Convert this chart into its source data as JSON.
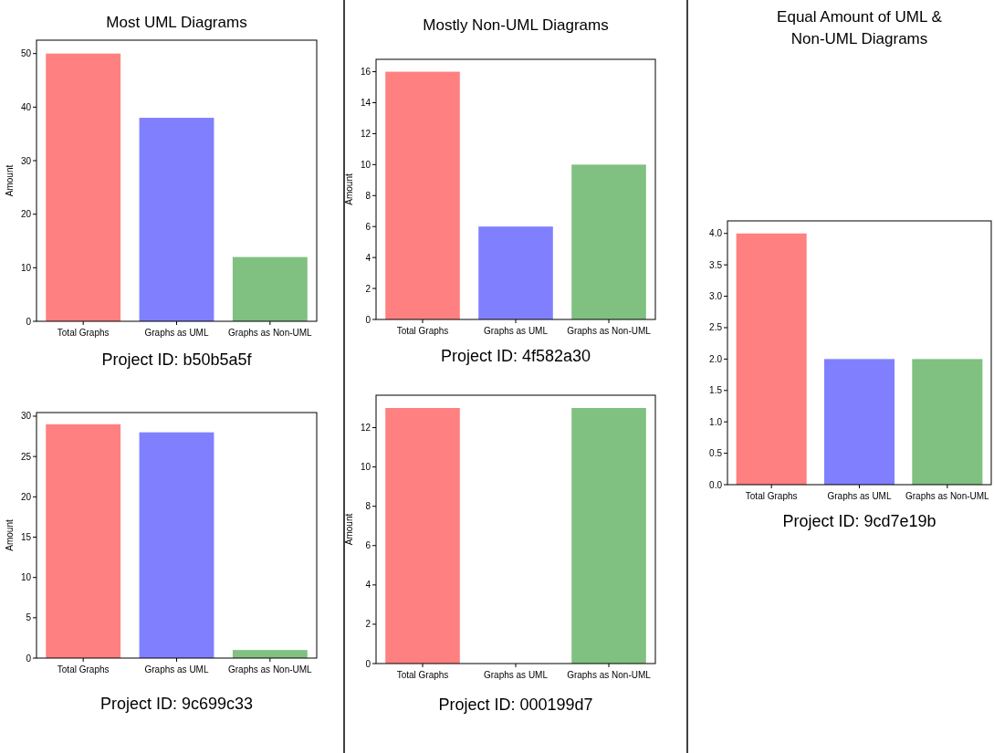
{
  "chart_data": [
    {
      "type": "bar",
      "title": "Most UML Diagrams",
      "xlabel": "Project ID: b50b5a5f",
      "ylabel": "Amount",
      "categories": [
        "Total Graphs",
        "Graphs as UML",
        "Graphs as Non-UML"
      ],
      "values": [
        50,
        38,
        12
      ],
      "colors": [
        "#ff8080",
        "#8080ff",
        "#80c080"
      ],
      "ylim": [
        0,
        52.5
      ],
      "yticks": [
        0,
        10,
        20,
        30,
        40,
        50
      ]
    },
    {
      "type": "bar",
      "title": "Mostly Non-UML Diagrams",
      "xlabel": "Project ID: 4f582a30",
      "ylabel": "Amount",
      "categories": [
        "Total Graphs",
        "Graphs as UML",
        "Graphs as Non-UML"
      ],
      "values": [
        16,
        6,
        10
      ],
      "colors": [
        "#ff8080",
        "#8080ff",
        "#80c080"
      ],
      "ylim": [
        0,
        16.8
      ],
      "yticks": [
        0,
        2,
        4,
        6,
        8,
        10,
        12,
        14,
        16
      ]
    },
    {
      "type": "bar",
      "title": "Equal Amount of UML & Non-UML Diagrams",
      "xlabel": "Project ID: 9cd7e19b",
      "categories": [
        "Total Graphs",
        "Graphs as UML",
        "Graphs as Non-UML"
      ],
      "values": [
        4,
        2,
        2
      ],
      "colors": [
        "#ff8080",
        "#8080ff",
        "#80c080"
      ],
      "ylim": [
        0,
        4.2
      ],
      "yticks": [
        {
          "value": 0,
          "label": "0.0"
        },
        0.5,
        {
          "value": 1,
          "label": "1.0"
        },
        1.5,
        {
          "value": 2,
          "label": "2.0"
        },
        2.5,
        {
          "value": 3,
          "label": "3.0"
        },
        3.5,
        {
          "value": 4,
          "label": "4.0"
        }
      ]
    },
    {
      "type": "bar",
      "xlabel": "Project ID: 9c699c33",
      "ylabel": "Amount",
      "categories": [
        "Total Graphs",
        "Graphs as UML",
        "Graphs as Non-UML"
      ],
      "values": [
        29,
        28,
        1
      ],
      "colors": [
        "#ff8080",
        "#8080ff",
        "#80c080"
      ],
      "ylim": [
        0,
        30.45
      ],
      "yticks": [
        0,
        5,
        10,
        15,
        20,
        25,
        30
      ]
    },
    {
      "type": "bar",
      "xlabel": "Project ID: 000199d7",
      "ylabel": "Amount",
      "categories": [
        "Total Graphs",
        "Graphs as UML",
        "Graphs as Non-UML"
      ],
      "values": [
        13,
        0,
        13
      ],
      "colors": [
        "#ff8080",
        "#8080ff",
        "#80c080"
      ],
      "ylim": [
        0,
        13.65
      ],
      "yticks": [
        0,
        2,
        4,
        6,
        8,
        10,
        12
      ]
    }
  ]
}
